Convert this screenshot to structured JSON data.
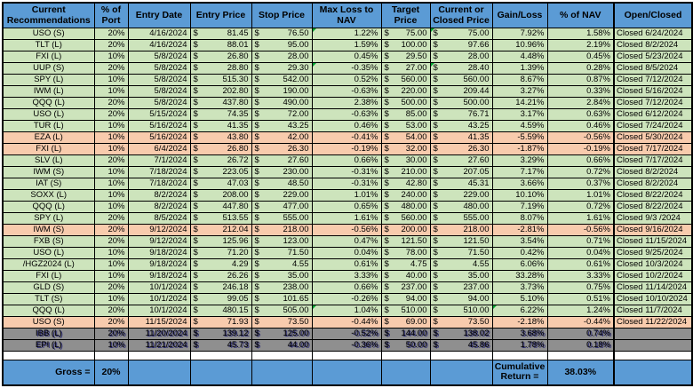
{
  "colors": {
    "header_blue": "#5B9BD5",
    "row_green": "#CDE4BC",
    "row_salmon": "#F8CBAD",
    "row_gray": "#8F8F8F",
    "flag_green": "#00A431"
  },
  "table": {
    "columns": [
      {
        "key": "ticker",
        "label": "Current\nRecommendations"
      },
      {
        "key": "port",
        "label": "% of\nPort"
      },
      {
        "key": "entry-date",
        "label": "Entry Date"
      },
      {
        "key": "entry-price",
        "label": "Entry Price"
      },
      {
        "key": "stop-price",
        "label": "Stop Price"
      },
      {
        "key": "max-loss",
        "label": "Max Loss to\nNAV"
      },
      {
        "key": "target-price",
        "label": "Target\nPrice"
      },
      {
        "key": "current-price",
        "label": "Current or\nClosed Price"
      },
      {
        "key": "gain-loss",
        "label": "Gain/Loss"
      },
      {
        "key": "nav",
        "label": "% of NAV"
      },
      {
        "key": "open-closed",
        "label": "Open/Closed"
      }
    ],
    "currency_symbol": "$",
    "rows": [
      {
        "name": "USO (S)",
        "port": "20%",
        "date": "4/16/2024",
        "entry": "81.45",
        "stop": "76.50",
        "maxloss": "1.22%",
        "target": "75.00",
        "current": "75.00",
        "gain": "7.92%",
        "nav": "1.58%",
        "status": "Closed 6/24/2024",
        "color": "green",
        "flags": [
          "maxloss",
          "current"
        ]
      },
      {
        "name": "TLT (L)",
        "port": "20%",
        "date": "4/16/2024",
        "entry": "88.01",
        "stop": "95.00",
        "maxloss": "1.59%",
        "target": "100.00",
        "current": "97.66",
        "gain": "10.96%",
        "nav": "2.19%",
        "status": "Closed 8/2/2024",
        "color": "green",
        "flags": []
      },
      {
        "name": "FXI (L)",
        "port": "10%",
        "date": "5/8/2024",
        "entry": "26.80",
        "stop": "28.00",
        "maxloss": "0.45%",
        "target": "29.50",
        "current": "28.00",
        "gain": "4.48%",
        "nav": "0.45%",
        "status": "Closed 5/23/2024",
        "color": "green",
        "flags": []
      },
      {
        "name": "UUP (S)",
        "port": "20%",
        "date": "5/8/2024",
        "entry": "28.80",
        "stop": "29.30",
        "maxloss": "-0.35%",
        "target": "27.00",
        "current": "28.40",
        "gain": "1.39%",
        "nav": "0.28%",
        "status": "Closed 8/5/2024",
        "color": "green",
        "flags": [
          "maxloss",
          "current"
        ]
      },
      {
        "name": "SPY (L)",
        "port": "10%",
        "date": "5/8/2024",
        "entry": "515.30",
        "stop": "542.00",
        "maxloss": "0.52%",
        "target": "560.00",
        "current": "560.00",
        "gain": "8.67%",
        "nav": "0.87%",
        "status": "Closed 7/12/2024",
        "color": "green",
        "flags": []
      },
      {
        "name": "IWM (L)",
        "port": "10%",
        "date": "5/8/2024",
        "entry": "202.80",
        "stop": "190.00",
        "maxloss": "-0.63%",
        "target": "220.00",
        "current": "209.44",
        "gain": "3.27%",
        "nav": "0.33%",
        "status": "Closed 5/16/2024",
        "color": "green",
        "flags": []
      },
      {
        "name": "QQQ (L)",
        "port": "20%",
        "date": "5/8/2024",
        "entry": "437.80",
        "stop": "490.00",
        "maxloss": "2.38%",
        "target": "500.00",
        "current": "500.00",
        "gain": "14.21%",
        "nav": "2.84%",
        "status": "Closed 7/12/2024",
        "color": "green",
        "flags": []
      },
      {
        "name": "USO (L)",
        "port": "20%",
        "date": "5/15/2024",
        "entry": "74.35",
        "stop": "72.00",
        "maxloss": "-0.63%",
        "target": "85.00",
        "current": "76.71",
        "gain": "3.17%",
        "nav": "0.63%",
        "status": "Closed 6/12/2024",
        "color": "green",
        "flags": []
      },
      {
        "name": "TUR (L)",
        "port": "10%",
        "date": "5/16/2024",
        "entry": "41.35",
        "stop": "43.25",
        "maxloss": "0.46%",
        "target": "53.00",
        "current": "43.25",
        "gain": "4.59%",
        "nav": "0.46%",
        "status": "Closed 7/24/2024",
        "color": "green",
        "flags": []
      },
      {
        "name": "EZA (L)",
        "port": "10%",
        "date": "5/16/2024",
        "entry": "43.80",
        "stop": "42.00",
        "maxloss": "-0.41%",
        "target": "54.00",
        "current": "41.35",
        "gain": "-5.59%",
        "nav": "-0.56%",
        "status": "Closed 5/30/2024",
        "color": "salmon",
        "flags": []
      },
      {
        "name": "FXI (L)",
        "port": "10%",
        "date": "6/4/2024",
        "entry": "26.80",
        "stop": "26.30",
        "maxloss": "-0.19%",
        "target": "32.00",
        "current": "26.30",
        "gain": "-1.87%",
        "nav": "-0.19%",
        "status": "Closed 7/17/2024",
        "color": "salmon",
        "flags": []
      },
      {
        "name": "SLV (L)",
        "port": "20%",
        "date": "7/1/2024",
        "entry": "26.72",
        "stop": "27.60",
        "maxloss": "0.66%",
        "target": "30.00",
        "current": "27.60",
        "gain": "3.29%",
        "nav": "0.66%",
        "status": "Closed 7/17/2024",
        "color": "green",
        "flags": []
      },
      {
        "name": "IWM (S)",
        "port": "10%",
        "date": "7/18/2024",
        "entry": "223.05",
        "stop": "230.00",
        "maxloss": "-0.31%",
        "target": "210.00",
        "current": "207.05",
        "gain": "7.17%",
        "nav": "0.72%",
        "status": "Closed 8/2/2024",
        "color": "green",
        "flags": []
      },
      {
        "name": "IAT (S)",
        "port": "10%",
        "date": "7/18/2024",
        "entry": "47.03",
        "stop": "48.50",
        "maxloss": "-0.31%",
        "target": "42.80",
        "current": "45.31",
        "gain": "3.66%",
        "nav": "0.37%",
        "status": "Closed 8/2/2024",
        "color": "green",
        "flags": []
      },
      {
        "name": "SOXX (L)",
        "port": "10%",
        "date": "8/2/2024",
        "entry": "208.00",
        "stop": "229.00",
        "maxloss": "1.01%",
        "target": "240.00",
        "current": "229.00",
        "gain": "10.10%",
        "nav": "1.01%",
        "status": "Closed 8/22/2024",
        "color": "green",
        "flags": []
      },
      {
        "name": "QQQ (L)",
        "port": "10%",
        "date": "8/2/2024",
        "entry": "447.80",
        "stop": "477.00",
        "maxloss": "0.65%",
        "target": "480.00",
        "current": "480.00",
        "gain": "7.19%",
        "nav": "0.72%",
        "status": "Closed 8/22/2024",
        "color": "green",
        "flags": []
      },
      {
        "name": "SPY (L)",
        "port": "20%",
        "date": "8/5/2024",
        "entry": "513.55",
        "stop": "555.00",
        "maxloss": "1.61%",
        "target": "560.00",
        "current": "555.00",
        "gain": "8.07%",
        "nav": "1.61%",
        "status": "Closed 9/3 /2024",
        "color": "green",
        "flags": []
      },
      {
        "name": "IWM (S)",
        "port": "20%",
        "date": "9/12/2024",
        "entry": "212.04",
        "stop": "218.00",
        "maxloss": "-0.56%",
        "target": "200.00",
        "current": "218.00",
        "gain": "-2.81%",
        "nav": "-0.56%",
        "status": "Closed 9/16/2024",
        "color": "salmon",
        "flags": []
      },
      {
        "name": "FXB (S)",
        "port": "20%",
        "date": "9/12/2024",
        "entry": "125.96",
        "stop": "123.00",
        "maxloss": "0.47%",
        "target": "121.50",
        "current": "121.50",
        "gain": "3.54%",
        "nav": "0.71%",
        "status": "Closed 11/15/2024",
        "color": "green",
        "flags": []
      },
      {
        "name": "USO (L)",
        "port": "10%",
        "date": "9/18/2024",
        "entry": "71.20",
        "stop": "71.50",
        "maxloss": "0.04%",
        "target": "78.00",
        "current": "71.50",
        "gain": "0.42%",
        "nav": "0.04%",
        "status": "Closed 9/25/2024",
        "color": "green",
        "flags": []
      },
      {
        "name": "/HGZ2024 (L)",
        "port": "10%",
        "date": "9/18/2024",
        "entry": "4.29",
        "stop": "4.55",
        "maxloss": "0.61%",
        "target": "4.75",
        "current": "4.55",
        "gain": "6.06%",
        "nav": "0.61%",
        "status": "Closed 10/3/2024",
        "color": "green",
        "flags": []
      },
      {
        "name": "FXI (L)",
        "port": "10%",
        "date": "9/18/2024",
        "entry": "26.26",
        "stop": "35.00",
        "maxloss": "3.33%",
        "target": "40.00",
        "current": "35.00",
        "gain": "33.28%",
        "nav": "3.33%",
        "status": "Closed 10/2/2024",
        "color": "green",
        "flags": []
      },
      {
        "name": "GLD (S)",
        "port": "20%",
        "date": "10/1/2024",
        "entry": "246.18",
        "stop": "238.00",
        "maxloss": "0.66%",
        "target": "237.00",
        "current": "237.00",
        "gain": "3.73%",
        "nav": "0.75%",
        "status": "Closed 11/14/2024",
        "color": "green",
        "flags": []
      },
      {
        "name": "TLT (S)",
        "port": "10%",
        "date": "10/1/2024",
        "entry": "99.05",
        "stop": "101.65",
        "maxloss": "-0.26%",
        "target": "94.00",
        "current": "94.00",
        "gain": "5.10%",
        "nav": "0.51%",
        "status": "Closed 10/10/2024",
        "color": "green",
        "flags": []
      },
      {
        "name": "QQQ (L)",
        "port": "20%",
        "date": "10/1/2024",
        "entry": "480.15",
        "stop": "505.00",
        "maxloss": "1.04%",
        "target": "510.00",
        "current": "510.00",
        "gain": "6.22%",
        "nav": "1.24%",
        "status": "Closed 11/7/2024",
        "color": "green",
        "flags": [
          "maxloss",
          "gain"
        ]
      },
      {
        "name": "USO (S)",
        "port": "20%",
        "date": "11/15/2024",
        "entry": "71.93",
        "stop": "73.50",
        "maxloss": "-0.44%",
        "target": "69.00",
        "current": "73.50",
        "gain": "-2.18%",
        "nav": "-0.44%",
        "status": "Closed 11/22/2024",
        "color": "salmon",
        "flags": []
      },
      {
        "name": "IBB (L)",
        "port": "20%",
        "date": "11/20/2024",
        "entry": "139.12",
        "stop": "125.00",
        "maxloss": "-0.52%",
        "target": "144.00",
        "current": "138.02",
        "gain": "3.68%",
        "nav": "0.74%",
        "status": "",
        "color": "gray",
        "flags": []
      },
      {
        "name": "EPI (L)",
        "port": "10%",
        "date": "11/21/2024",
        "entry": "45.73",
        "stop": "44.00",
        "maxloss": "-0.36%",
        "target": "50.00",
        "current": "45.86",
        "gain": "1.78%",
        "nav": "0.18%",
        "status": "",
        "color": "gray",
        "flags": []
      }
    ]
  },
  "summary": {
    "gross_label": "Gross =",
    "gross_value": "20%",
    "cumulative_label": "Cumulative Return =",
    "cumulative_value": "38.03%"
  }
}
